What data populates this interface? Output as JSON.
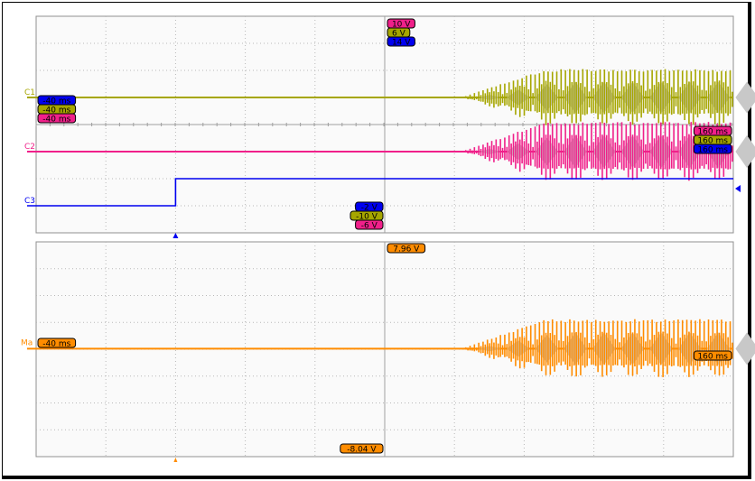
{
  "chart_data": [
    {
      "type": "line",
      "panel": "upper",
      "x_unit": "ms",
      "xlim": [
        -40,
        160
      ],
      "grid": true,
      "trigger_time_ms": 0,
      "channels": [
        {
          "name": "C1",
          "color": "#a6a600",
          "ylim": [
            -10,
            6
          ],
          "top_label": "6 V",
          "bottom_label": "-10 V",
          "left_label": "-40 ms",
          "right_label": "160 ms",
          "baseline_v": 0,
          "oscillation_start_ms": 82,
          "steady_amplitude_v": 2.1
        },
        {
          "name": "C2",
          "color": "#f0208a",
          "ylim": [
            -6,
            10
          ],
          "top_label": "10 V",
          "bottom_label": "-6 V",
          "left_label": "-40 ms",
          "right_label": "160 ms",
          "baseline_v": 0,
          "oscillation_start_ms": 82,
          "steady_amplitude_v": 2.2
        },
        {
          "name": "C3",
          "color": "#0000f0",
          "ylim": [
            -2,
            14
          ],
          "top_label": "14 V",
          "bottom_label": "-2 V",
          "left_label": "-40 ms",
          "right_label": "160 ms",
          "step": {
            "time_ms": 0,
            "before_v": 0,
            "after_v": 2
          }
        }
      ]
    },
    {
      "type": "line",
      "panel": "lower",
      "x_unit": "ms",
      "xlim": [
        -40,
        160
      ],
      "grid": true,
      "channels": [
        {
          "name": "Ma",
          "color": "#ff8c00",
          "ylim": [
            -8.04,
            7.96
          ],
          "top_label": "7.96 V",
          "bottom_label": "-8.04 V",
          "left_label": "-40 ms",
          "right_label": "160 ms",
          "baseline_v": 0,
          "oscillation_start_ms": 82,
          "steady_amplitude_v": 2.2
        }
      ]
    }
  ]
}
